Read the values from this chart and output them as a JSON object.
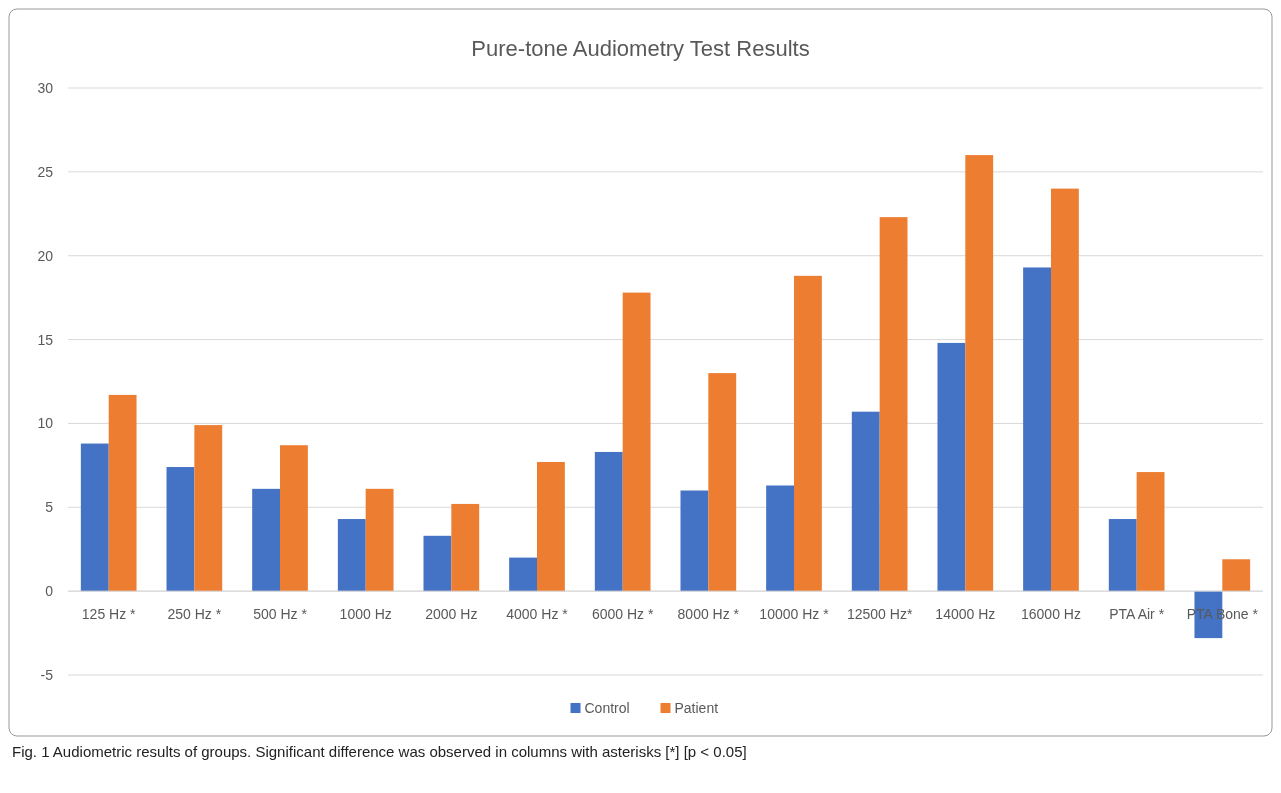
{
  "chart_data": {
    "type": "bar",
    "title": "Pure-tone Audiometry Test Results",
    "categories": [
      "125 Hz *",
      "250 Hz *",
      "500 Hz *",
      "1000 Hz",
      "2000 Hz",
      "4000 Hz *",
      "6000 Hz *",
      "8000 Hz *",
      "10000 Hz *",
      "12500 Hz*",
      "14000 Hz",
      "16000 Hz",
      "PTA Air *",
      "PTA Bone *"
    ],
    "series": [
      {
        "name": "Control",
        "color": "#4472c4",
        "values": [
          8.8,
          7.4,
          6.1,
          4.3,
          3.3,
          2.0,
          8.3,
          6.0,
          6.3,
          10.7,
          14.8,
          19.3,
          4.3,
          -2.8
        ]
      },
      {
        "name": "Patient",
        "color": "#ed7d31",
        "values": [
          11.7,
          9.9,
          8.7,
          6.1,
          5.2,
          7.7,
          17.8,
          13.0,
          18.8,
          22.3,
          26.0,
          24.0,
          7.1,
          1.9
        ]
      }
    ],
    "ylim": [
      -5,
      30
    ],
    "yticks": [
      -5,
      0,
      5,
      10,
      15,
      20,
      25,
      30
    ],
    "grid": "y",
    "legend": "bottom",
    "annotations": [
      "Fig. 1  Audiometric results of groups. Significant difference was observed in columns with asterisks [*] [p < 0.05]"
    ]
  }
}
